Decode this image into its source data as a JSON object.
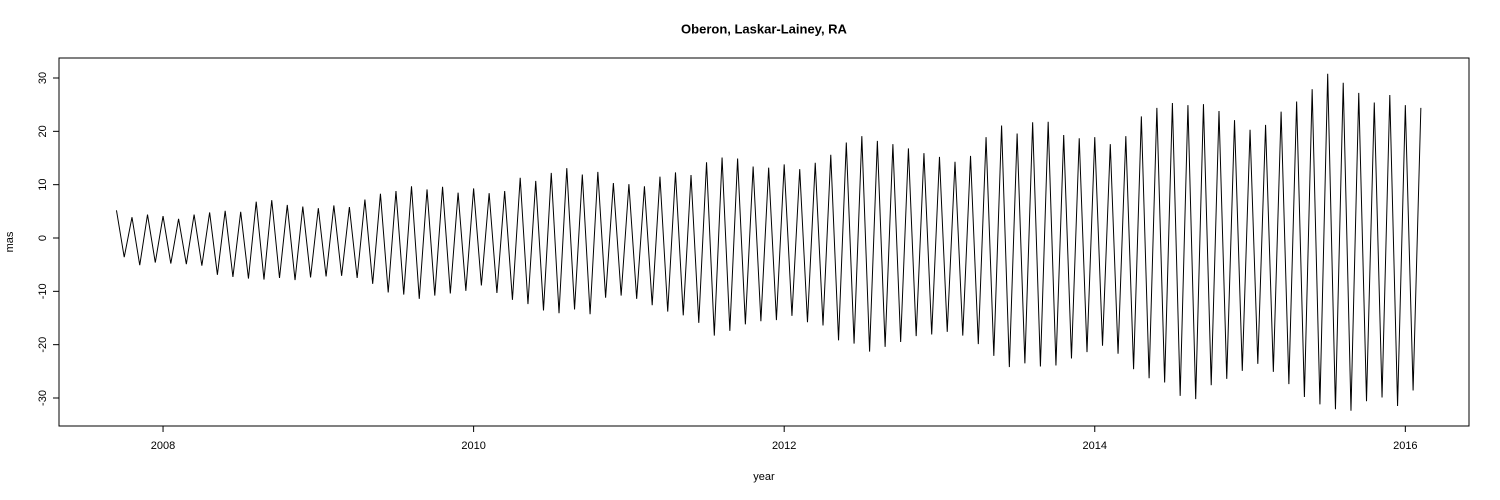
{
  "chart_data": {
    "type": "line",
    "title": "Oberon, Laskar-Lainey, RA",
    "x_label": "year",
    "y_label": "mas",
    "color": "#000000",
    "x": [
      2007.7,
      2007.75,
      2007.8,
      2007.85,
      2007.9,
      2007.95,
      2008.0,
      2008.05,
      2008.1,
      2008.15,
      2008.2,
      2008.25,
      2008.3,
      2008.35,
      2008.4,
      2008.45,
      2008.5,
      2008.55,
      2008.6,
      2008.65,
      2008.7,
      2008.75,
      2008.8,
      2008.85,
      2008.9,
      2008.95,
      2009.0,
      2009.05,
      2009.1,
      2009.15,
      2009.2,
      2009.25,
      2009.3,
      2009.35,
      2009.4,
      2009.45,
      2009.5,
      2009.55,
      2009.6,
      2009.65,
      2009.7,
      2009.75,
      2009.8,
      2009.85,
      2009.9,
      2009.95,
      2010.0,
      2010.05,
      2010.1,
      2010.15,
      2010.2,
      2010.25,
      2010.3,
      2010.35,
      2010.4,
      2010.45,
      2010.5,
      2010.55,
      2010.6,
      2010.65,
      2010.7,
      2010.75,
      2010.8,
      2010.85,
      2010.9,
      2010.95,
      2011.0,
      2011.05,
      2011.1,
      2011.15,
      2011.2,
      2011.25,
      2011.3,
      2011.35,
      2011.4,
      2011.45,
      2011.5,
      2011.55,
      2011.6,
      2011.65,
      2011.7,
      2011.75,
      2011.8,
      2011.85,
      2011.9,
      2011.95,
      2012.0,
      2012.05,
      2012.1,
      2012.15,
      2012.2,
      2012.25,
      2012.3,
      2012.35,
      2012.4,
      2012.45,
      2012.5,
      2012.55,
      2012.6,
      2012.65,
      2012.7,
      2012.75,
      2012.8,
      2012.85,
      2012.9,
      2012.95,
      2013.0,
      2013.05,
      2013.1,
      2013.15,
      2013.2,
      2013.25,
      2013.3,
      2013.35,
      2013.4,
      2013.45,
      2013.5,
      2013.55,
      2013.6,
      2013.65,
      2013.7,
      2013.75,
      2013.8,
      2013.85,
      2013.9,
      2013.95,
      2014.0,
      2014.05,
      2014.1,
      2014.15,
      2014.2,
      2014.25,
      2014.3,
      2014.35,
      2014.4,
      2014.45,
      2014.5,
      2014.55,
      2014.6,
      2014.65,
      2014.7,
      2014.75,
      2014.8,
      2014.85,
      2014.9,
      2014.95,
      2015.0,
      2015.05,
      2015.1,
      2015.15,
      2015.2,
      2015.25,
      2015.3,
      2015.35,
      2015.4,
      2015.45,
      2015.5,
      2015.55,
      2015.6,
      2015.65,
      2015.7,
      2015.75,
      2015.8,
      2015.85,
      2015.9,
      2015.95,
      2016.0,
      2016.05,
      2016.1
    ],
    "values": [
      5.2,
      -3.6,
      3.9,
      -5.1,
      4.4,
      -4.6,
      4.1,
      -4.8,
      3.6,
      -4.9,
      4.4,
      -5.2,
      4.8,
      -6.9,
      5.1,
      -7.3,
      4.9,
      -7.6,
      6.8,
      -7.8,
      7.1,
      -7.5,
      6.2,
      -7.9,
      5.9,
      -7.4,
      5.6,
      -7.2,
      6.1,
      -7.1,
      5.8,
      -7.5,
      7.2,
      -8.6,
      8.3,
      -10.2,
      8.8,
      -10.6,
      9.7,
      -11.4,
      9.1,
      -10.8,
      9.6,
      -10.4,
      8.5,
      -9.9,
      9.3,
      -8.9,
      8.4,
      -10.3,
      8.8,
      -11.6,
      11.3,
      -12.4,
      10.7,
      -13.6,
      12.2,
      -14.1,
      13.1,
      -13.4,
      11.9,
      -14.3,
      12.4,
      -11.2,
      10.3,
      -10.8,
      10.1,
      -11.4,
      9.7,
      -12.6,
      11.5,
      -13.8,
      12.3,
      -14.5,
      11.8,
      -15.9,
      14.2,
      -18.3,
      15.1,
      -17.4,
      14.9,
      -16.2,
      13.4,
      -15.6,
      13.2,
      -15.4,
      13.8,
      -14.6,
      12.9,
      -15.8,
      14.1,
      -16.4,
      15.6,
      -19.2,
      17.9,
      -19.8,
      19.1,
      -21.3,
      18.2,
      -20.4,
      17.6,
      -19.5,
      16.8,
      -18.4,
      15.9,
      -18.1,
      15.2,
      -17.6,
      14.3,
      -18.3,
      15.4,
      -19.9,
      18.9,
      -22.1,
      21.1,
      -24.2,
      19.6,
      -23.5,
      21.7,
      -24.1,
      21.8,
      -23.9,
      19.3,
      -22.6,
      18.7,
      -21.4,
      18.9,
      -20.2,
      17.6,
      -21.7,
      19.1,
      -24.6,
      22.8,
      -26.3,
      24.4,
      -27.1,
      25.3,
      -29.6,
      24.9,
      -30.2,
      25.1,
      -27.6,
      23.8,
      -26.4,
      22.1,
      -24.9,
      20.3,
      -23.6,
      21.2,
      -25.1,
      23.7,
      -27.4,
      25.6,
      -29.8,
      27.9,
      -31.2,
      30.8,
      -32.1,
      29.1,
      -32.4,
      27.2,
      -30.6,
      25.4,
      -29.9,
      26.8,
      -31.5,
      24.9,
      -28.6,
      24.4
    ],
    "xlim": [
      2007.33,
      2016.41
    ],
    "ylim": [
      -35.25,
      33.75
    ],
    "xticks": [
      2008,
      2010,
      2012,
      2014,
      2016
    ],
    "yticks": [
      -30,
      -20,
      -10,
      0,
      10,
      20,
      30
    ]
  }
}
